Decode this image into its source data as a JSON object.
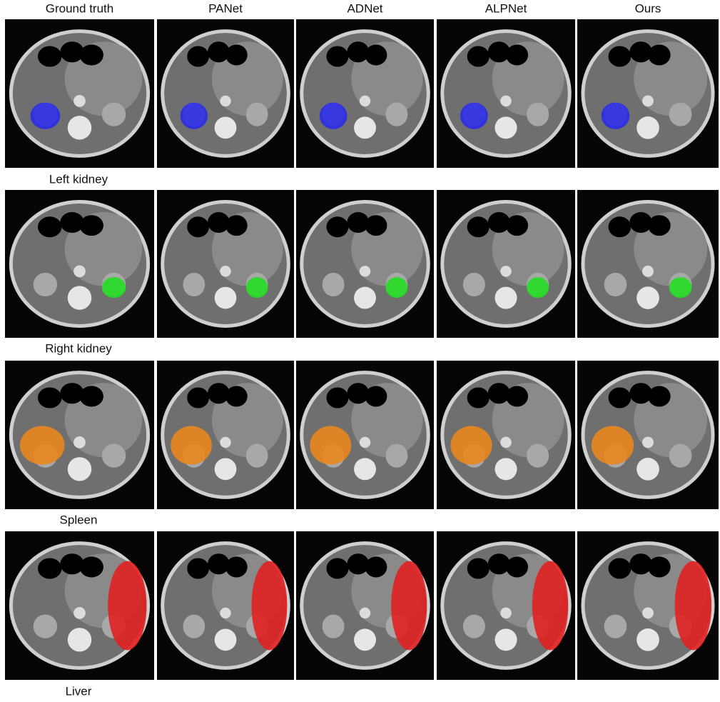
{
  "header": {
    "columns": [
      "Ground truth",
      "PANet",
      "ADNet",
      "ALPNet",
      "Ours"
    ]
  },
  "rows": [
    {
      "label": "Left kidney"
    },
    {
      "label": "Right kidney"
    },
    {
      "label": "Spleen"
    },
    {
      "label": "Liver"
    }
  ]
}
